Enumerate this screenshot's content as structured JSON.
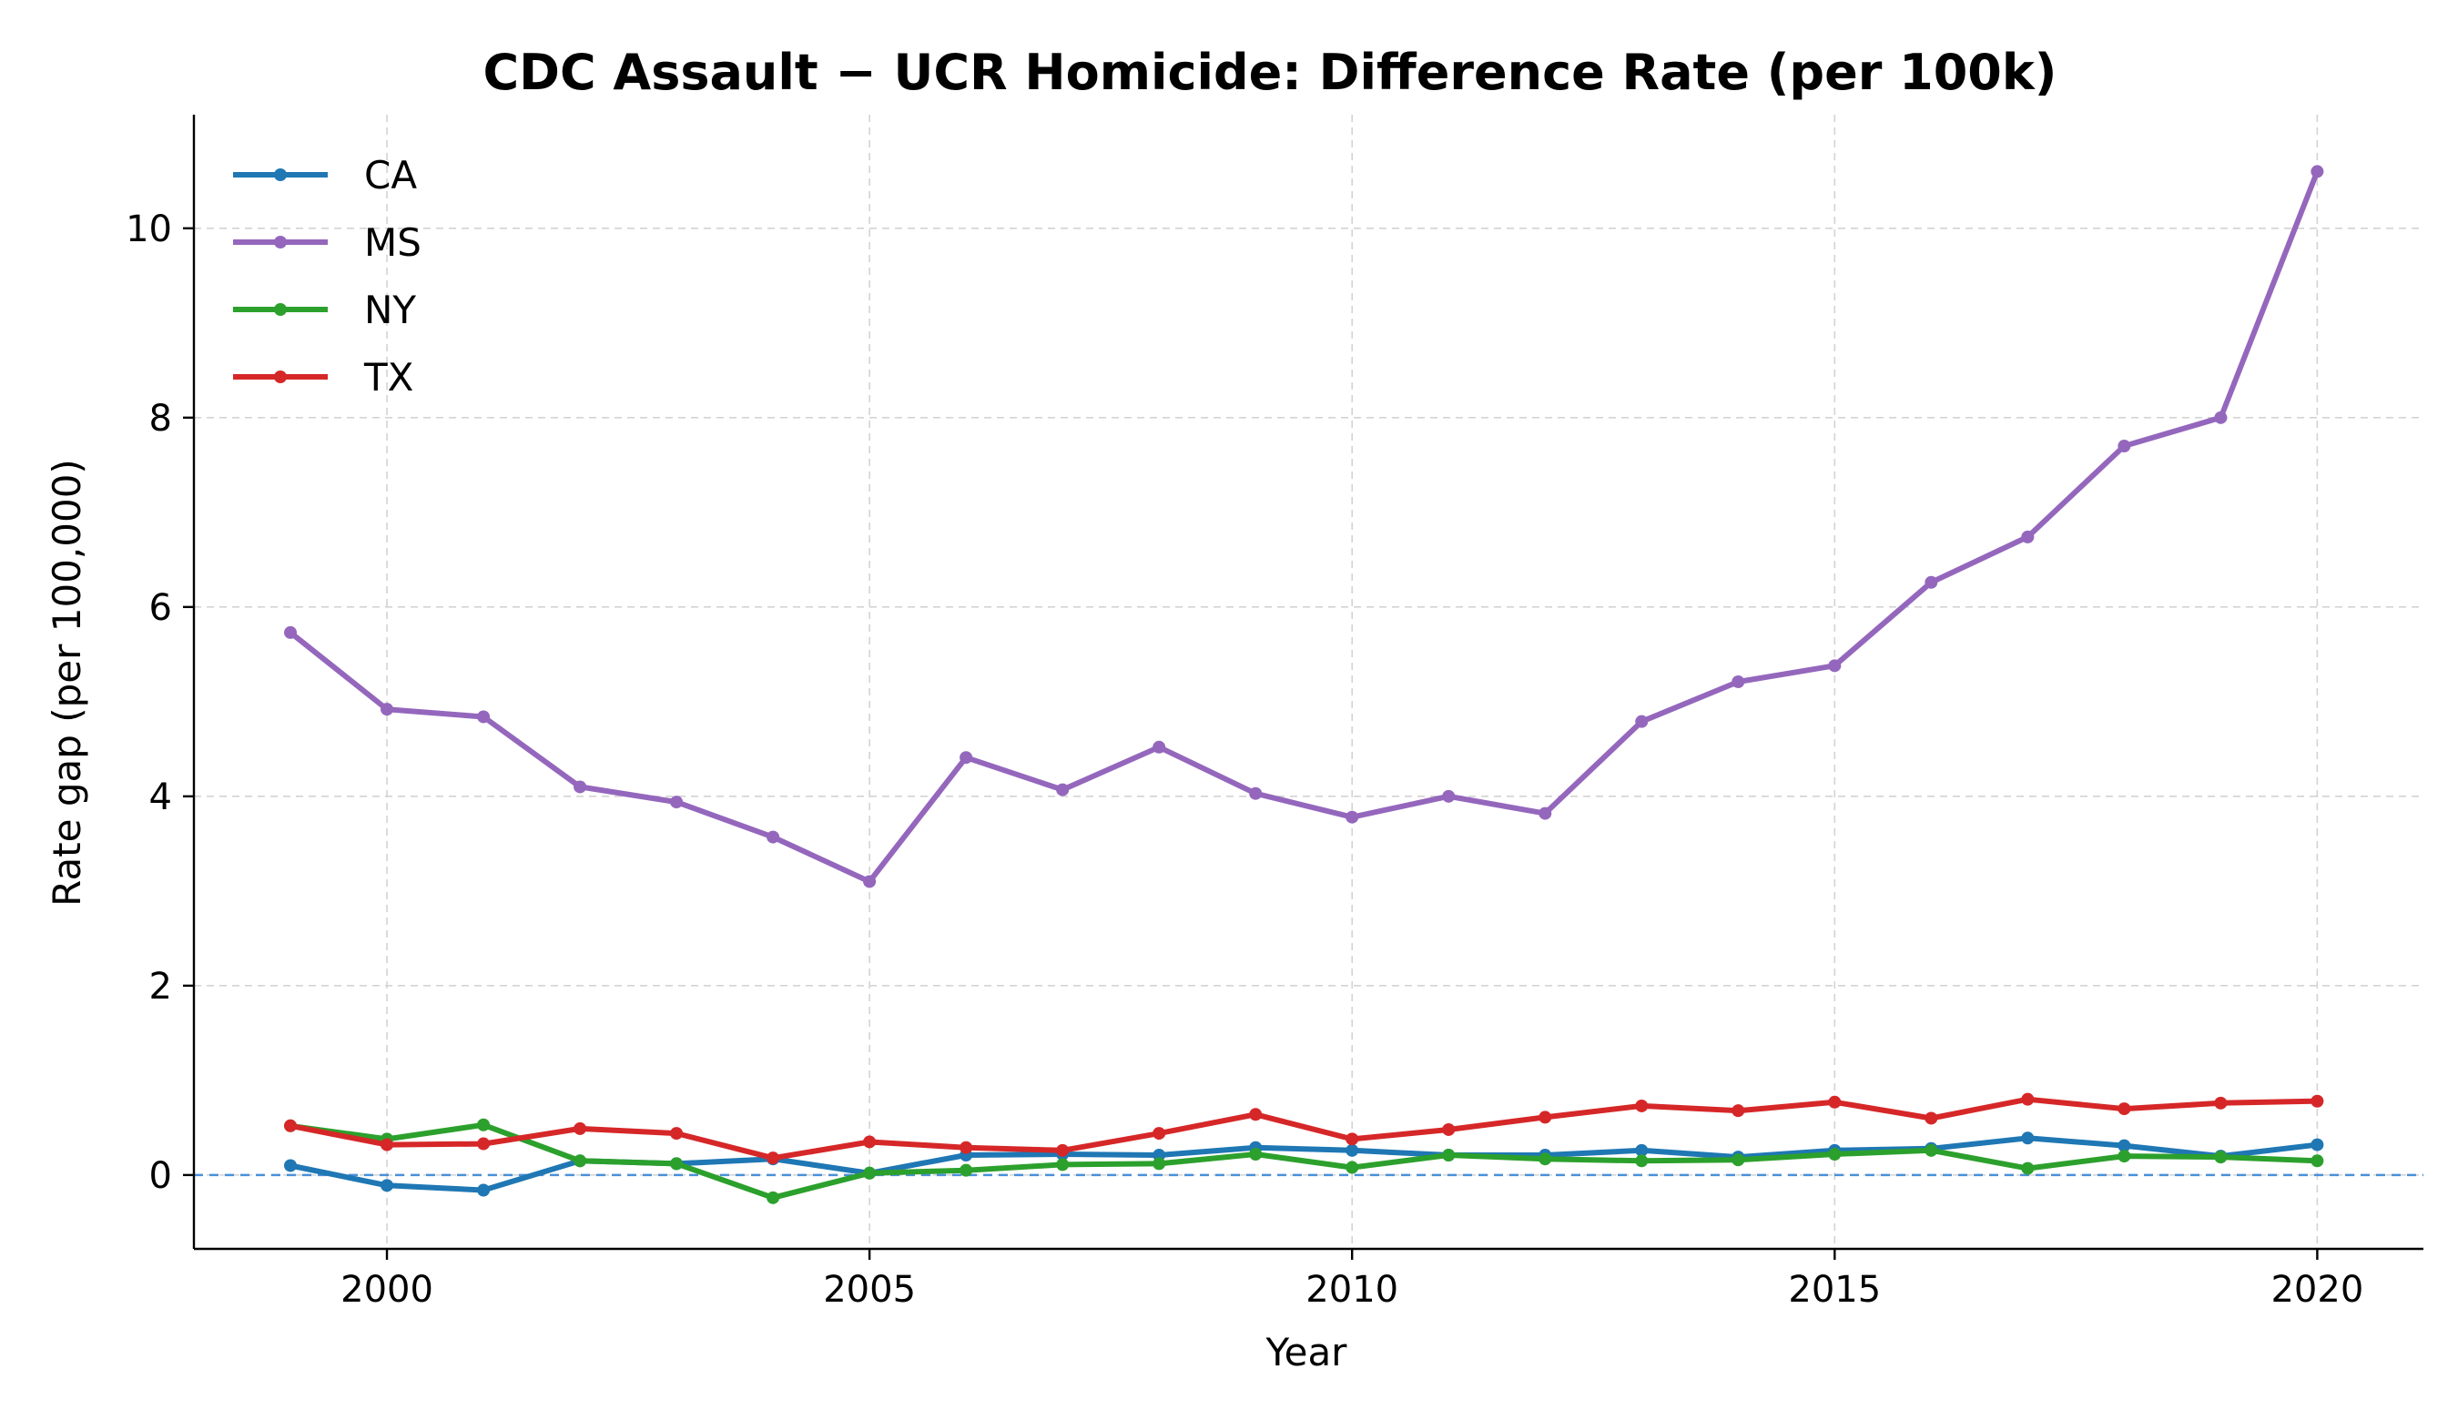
{
  "chart_data": {
    "type": "line",
    "title": "CDC Assault − UCR Homicide: Difference Rate (per 100k)",
    "xlabel": "Year",
    "ylabel": "Rate gap (per 100,000)",
    "xlim": [
      1998,
      2021.1
    ],
    "ylim": [
      -0.78,
      11.2
    ],
    "x_ticks": [
      2000,
      2005,
      2010,
      2015,
      2020
    ],
    "y_ticks": [
      0,
      2,
      4,
      6,
      8,
      10
    ],
    "grid": true,
    "legend_position": "top-left",
    "reference_line": {
      "y": 0,
      "color": "#4a90d9",
      "style": "dashed"
    },
    "x": [
      1999,
      2000,
      2001,
      2002,
      2003,
      2004,
      2005,
      2006,
      2007,
      2008,
      2009,
      2010,
      2011,
      2012,
      2013,
      2014,
      2015,
      2016,
      2017,
      2018,
      2019,
      2020
    ],
    "series": [
      {
        "name": "CA",
        "color": "#1f77b4",
        "values": [
          0.1,
          -0.11,
          -0.16,
          0.15,
          0.12,
          0.17,
          0.02,
          0.21,
          0.22,
          0.21,
          0.29,
          0.26,
          0.21,
          0.21,
          0.26,
          0.19,
          0.26,
          0.28,
          0.39,
          0.31,
          0.2,
          0.32
        ]
      },
      {
        "name": "MS",
        "color": "#9467bd",
        "values": [
          5.73,
          4.92,
          4.84,
          4.1,
          3.94,
          3.57,
          3.1,
          4.41,
          4.07,
          4.52,
          4.03,
          3.78,
          4.0,
          3.82,
          4.79,
          5.21,
          5.38,
          6.26,
          6.74,
          7.7,
          8.0,
          10.6
        ]
      },
      {
        "name": "NY",
        "color": "#2ca02c",
        "values": [
          0.52,
          0.38,
          0.53,
          0.15,
          0.12,
          -0.24,
          0.02,
          0.05,
          0.11,
          0.12,
          0.22,
          0.08,
          0.21,
          0.17,
          0.15,
          0.16,
          0.22,
          0.26,
          0.07,
          0.2,
          0.19,
          0.15
        ]
      },
      {
        "name": "TX",
        "color": "#d62728",
        "values": [
          0.52,
          0.32,
          0.33,
          0.49,
          0.44,
          0.18,
          0.35,
          0.29,
          0.26,
          0.44,
          0.64,
          0.38,
          0.48,
          0.61,
          0.73,
          0.68,
          0.77,
          0.6,
          0.8,
          0.7,
          0.76,
          0.78
        ]
      }
    ]
  }
}
